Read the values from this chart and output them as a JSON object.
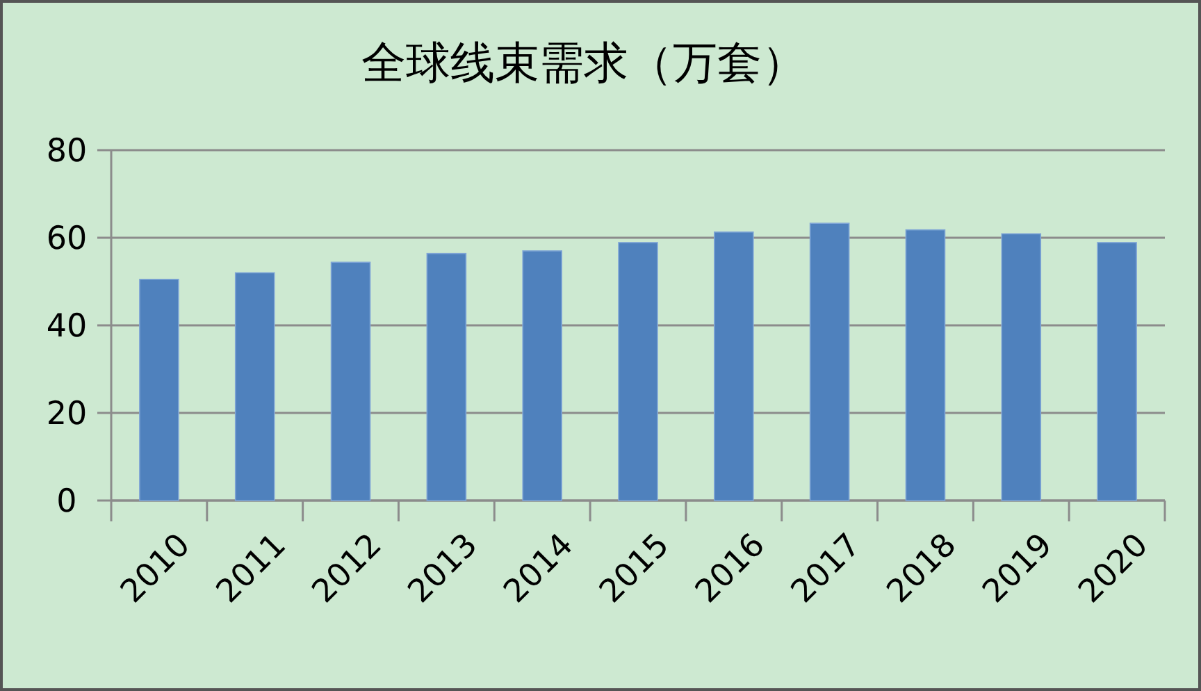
{
  "chart_data": {
    "type": "bar",
    "title": "全球线束需求（万套）",
    "categories": [
      "2010",
      "2011",
      "2012",
      "2013",
      "2014",
      "2015",
      "2016",
      "2017",
      "2018",
      "2019",
      "2020"
    ],
    "values": [
      50.5,
      52.0,
      54.4,
      56.4,
      57.0,
      58.9,
      61.3,
      63.3,
      61.8,
      60.9,
      58.9
    ],
    "color": "#4f81bd",
    "ylim": [
      0,
      80
    ],
    "yticks": [
      0,
      20,
      40,
      60,
      80
    ],
    "grid": "y"
  }
}
